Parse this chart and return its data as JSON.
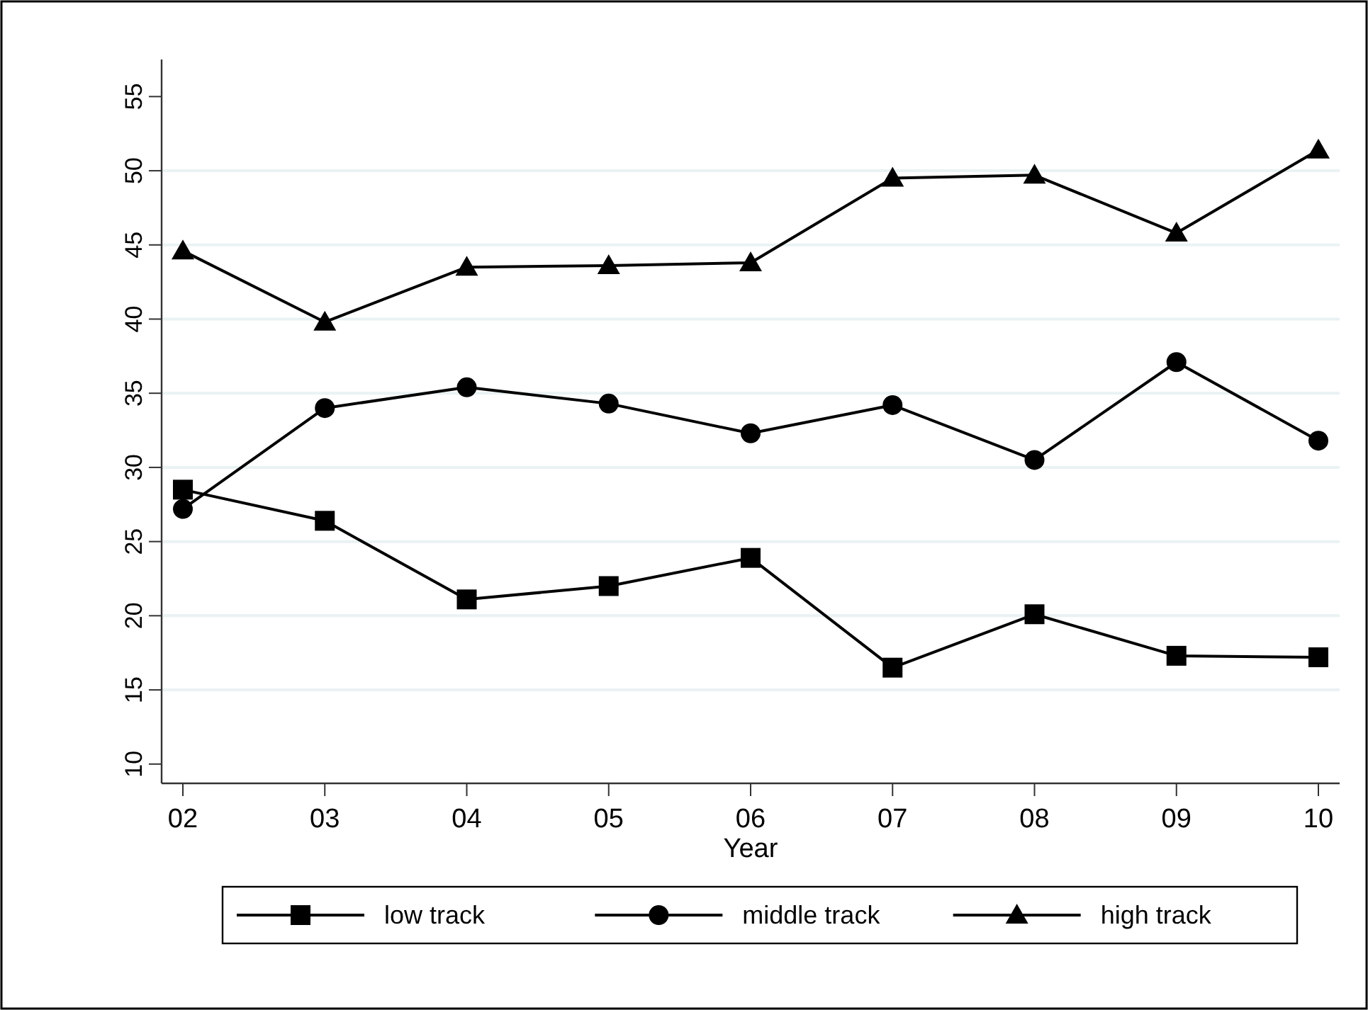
{
  "chart_data": {
    "type": "line",
    "xlabel": "Year",
    "categories": [
      "02",
      "03",
      "04",
      "05",
      "06",
      "07",
      "08",
      "09",
      "10"
    ],
    "series": [
      {
        "name": "low track",
        "color": "#000000",
        "marker": "square",
        "values": [
          28.5,
          26.4,
          21.1,
          22.0,
          23.9,
          16.5,
          20.1,
          17.3,
          17.2
        ]
      },
      {
        "name": "middle track",
        "color": "#000000",
        "marker": "circle",
        "values": [
          27.2,
          34.0,
          35.4,
          34.3,
          32.3,
          34.2,
          30.5,
          37.1,
          31.8
        ]
      },
      {
        "name": "high track",
        "color": "#000000",
        "marker": "triangle",
        "values": [
          44.6,
          39.8,
          43.5,
          43.6,
          43.8,
          49.5,
          49.7,
          45.8,
          51.4
        ]
      }
    ],
    "ylim": [
      8.7,
      57.5
    ],
    "yticks": [
      10,
      15,
      20,
      25,
      30,
      35,
      40,
      45,
      50,
      55
    ],
    "grid": "y",
    "legend": "bottom",
    "line_style": "solid"
  }
}
